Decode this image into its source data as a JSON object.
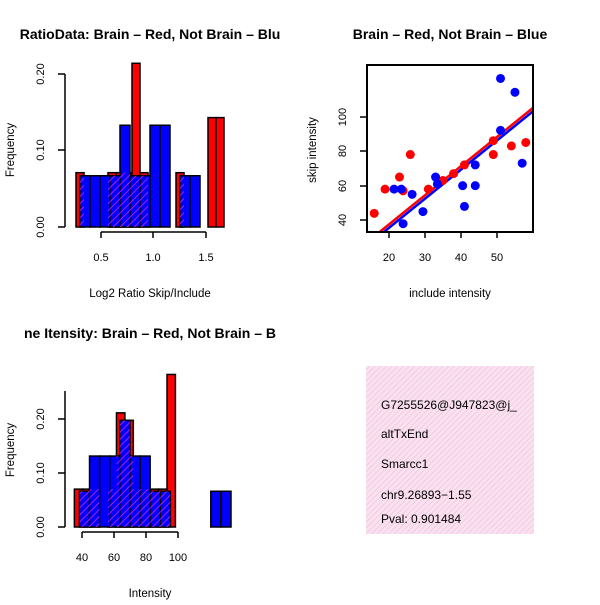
{
  "colors": {
    "red": "#ff0000",
    "blue": "#0000ff",
    "overlap": "#a020f0",
    "panel_bg": "#f7dcee",
    "pval": "#8b0000"
  },
  "chart_data": [
    {
      "type": "bar",
      "title": "RatioData: Brain – Red, Not Brain – Blu",
      "xlabel": "Log2 Ratio Skip/Include",
      "ylabel": "Frequency",
      "xlim": [
        0.24,
        1.8
      ],
      "ylim": [
        0,
        0.2
      ],
      "xticks": [
        "0.5",
        "1.0",
        "1.5"
      ],
      "xtick_values": [
        0.5,
        1.0,
        1.5
      ],
      "yticks": [
        "0.00",
        "0.10",
        "0.20"
      ],
      "ytick_values": [
        0,
        0.1,
        0.2
      ],
      "series": [
        {
          "name": "Brain",
          "color": "red",
          "bars": [
            [
              0.26,
              0.34,
              0.071
            ],
            [
              0.58,
              0.66,
              0.071
            ],
            [
              0.66,
              0.74,
              0.071
            ],
            [
              0.74,
              0.82,
              0.071
            ],
            [
              0.82,
              0.9,
              0.214
            ],
            [
              0.9,
              0.98,
              0.071
            ],
            [
              1.26,
              1.34,
              0.071
            ],
            [
              1.58,
              1.66,
              0.143
            ],
            [
              1.66,
              1.74,
              0.143
            ]
          ]
        },
        {
          "name": "Not Brain",
          "color": "blue",
          "bars": [
            [
              0.3,
              0.4,
              0.067
            ],
            [
              0.4,
              0.5,
              0.067
            ],
            [
              0.5,
              0.6,
              0.067
            ],
            [
              0.6,
              0.7,
              0.067
            ],
            [
              0.7,
              0.8,
              0.133
            ],
            [
              0.8,
              0.9,
              0.067
            ],
            [
              0.9,
              1.0,
              0.067
            ],
            [
              1.0,
              1.1,
              0.133
            ],
            [
              1.1,
              1.2,
              0.133
            ],
            [
              1.3,
              1.4,
              0.067
            ],
            [
              1.4,
              1.5,
              0.067
            ]
          ]
        }
      ]
    },
    {
      "type": "scatter",
      "title": "Brain – Red, Not Brain – Blue",
      "xlabel": "include intensity",
      "ylabel": "skip intensity",
      "xlim": [
        14,
        60
      ],
      "ylim": [
        32,
        128
      ],
      "xticks": [
        "20",
        "30",
        "40",
        "50"
      ],
      "xtick_values": [
        20,
        30,
        40,
        50
      ],
      "yticks": [
        "40",
        "60",
        "80",
        "100"
      ],
      "ytick_values": [
        40,
        60,
        80,
        100
      ],
      "series": [
        {
          "name": "Brain",
          "color": "red",
          "points": [
            [
              16,
              48
            ],
            [
              19,
              62
            ],
            [
              23,
              69
            ],
            [
              24,
              61
            ],
            [
              26,
              82
            ],
            [
              29.5,
              35
            ],
            [
              31,
              62
            ],
            [
              35,
              67
            ],
            [
              38,
              71
            ],
            [
              41,
              76
            ],
            [
              49,
              90
            ],
            [
              49,
              82
            ],
            [
              54,
              87
            ],
            [
              58,
              89
            ]
          ]
        },
        {
          "name": "Not Brain",
          "color": "blue",
          "points": [
            [
              21.5,
              62
            ],
            [
              23.5,
              62
            ],
            [
              24,
              42
            ],
            [
              26.5,
              59
            ],
            [
              29.5,
              49
            ],
            [
              33,
              69
            ],
            [
              33.5,
              65
            ],
            [
              40.5,
              64
            ],
            [
              41,
              52
            ],
            [
              44,
              64
            ],
            [
              44,
              76
            ],
            [
              51,
              126
            ],
            [
              51,
              96
            ],
            [
              55,
              118
            ],
            [
              57,
              77
            ]
          ]
        }
      ],
      "fit_lines": [
        {
          "name": "Brain",
          "color": "red",
          "from": [
            15,
            33
          ],
          "to": [
            60,
            109
          ]
        },
        {
          "name": "Not Brain",
          "color": "blue",
          "from": [
            15,
            31
          ],
          "to": [
            60,
            107
          ]
        }
      ]
    },
    {
      "type": "bar",
      "title": "ne Itensity: Brain – Red, Not Brain – B",
      "xlabel": "Intensity",
      "ylabel": "Frequency",
      "xlim": [
        33,
        128
      ],
      "ylim": [
        0,
        0.27
      ],
      "xticks": [
        "40",
        "60",
        "80",
        "100"
      ],
      "xtick_values": [
        40,
        60,
        80,
        100
      ],
      "yticks": [
        "0.00",
        "0.10",
        "0.20"
      ],
      "ytick_values": [
        0,
        0.1,
        0.2
      ],
      "series": [
        {
          "name": "Brain",
          "color": "red",
          "bars": [
            [
              35,
              40,
              0.071
            ],
            [
              40,
              45,
              0.071
            ],
            [
              45,
              50,
              0.071
            ],
            [
              55,
              60,
              0.071
            ],
            [
              60,
              65,
              0.214
            ],
            [
              65,
              70,
              0.2
            ],
            [
              70,
              75,
              0.071
            ],
            [
              75,
              80,
              0.071
            ],
            [
              80,
              85,
              0.071
            ],
            [
              85,
              90,
              0.071
            ],
            [
              90,
              95,
              0.286
            ]
          ]
        },
        {
          "name": "Not Brain",
          "color": "blue",
          "bars": [
            [
              38,
              44,
              0.067
            ],
            [
              44,
              50,
              0.133
            ],
            [
              50,
              56,
              0.133
            ],
            [
              56,
              62,
              0.133
            ],
            [
              62,
              68,
              0.2
            ],
            [
              68,
              74,
              0.133
            ],
            [
              74,
              80,
              0.133
            ],
            [
              80,
              86,
              0.067
            ],
            [
              86,
              92,
              0.067
            ],
            [
              116,
              122,
              0.067
            ],
            [
              122,
              128,
              0.067
            ]
          ]
        }
      ]
    }
  ],
  "info_panel": {
    "id": "G7255526@J947823@j_",
    "type": "altTxEnd",
    "gene": "Smarcc1",
    "location": "chr9.26893−1.55",
    "pval": "Pval: 0.901484"
  }
}
